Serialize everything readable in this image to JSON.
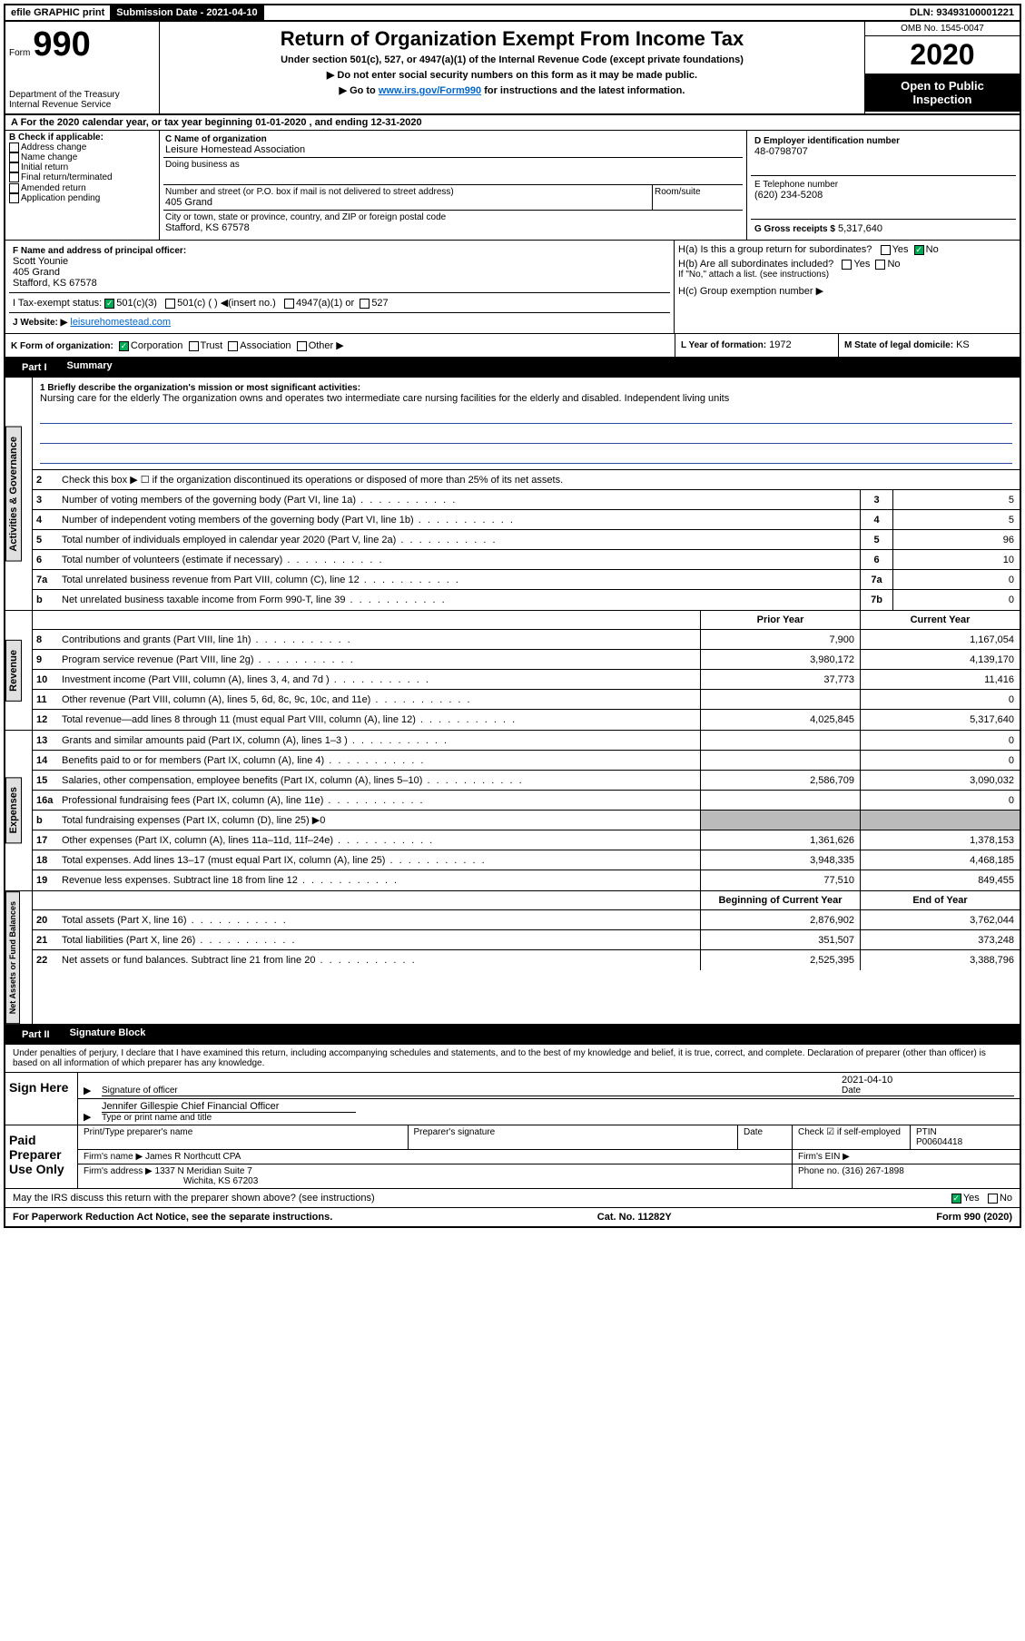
{
  "topbar": {
    "efile": "efile GRAPHIC print",
    "submission": "Submission Date - 2021-04-10",
    "dln": "DLN: 93493100001221"
  },
  "header": {
    "form_label": "Form",
    "form_num": "990",
    "dept": "Department of the Treasury",
    "irs": "Internal Revenue Service",
    "title": "Return of Organization Exempt From Income Tax",
    "subtitle1": "Under section 501(c), 527, or 4947(a)(1) of the Internal Revenue Code (except private foundations)",
    "subtitle2": "▶ Do not enter social security numbers on this form as it may be made public.",
    "subtitle3_pre": "▶ Go to ",
    "subtitle3_link": "www.irs.gov/Form990",
    "subtitle3_post": " for instructions and the latest information.",
    "omb": "OMB No. 1545-0047",
    "year": "2020",
    "open_public": "Open to Public Inspection"
  },
  "periodA": "A For the 2020 calendar year, or tax year beginning 01-01-2020    , and ending 12-31-2020",
  "boxB": {
    "title": "B Check if applicable:",
    "opts": [
      "Address change",
      "Name change",
      "Initial return",
      "Final return/terminated",
      "Amended return",
      "Application pending"
    ]
  },
  "boxC": {
    "label_name": "C Name of organization",
    "org_name": "Leisure Homestead Association",
    "dba_label": "Doing business as",
    "addr_label": "Number and street (or P.O. box if mail is not delivered to street address)",
    "room_label": "Room/suite",
    "addr": "405 Grand",
    "city_label": "City or town, state or province, country, and ZIP or foreign postal code",
    "city": "Stafford, KS  67578"
  },
  "boxD": {
    "label": "D Employer identification number",
    "val": "48-0798707"
  },
  "boxE": {
    "label": "E Telephone number",
    "val": "(620) 234-5208"
  },
  "boxG": {
    "label": "G Gross receipts $",
    "val": "5,317,640"
  },
  "boxF": {
    "label": "F  Name and address of principal officer:",
    "name": "Scott Younie",
    "addr1": "405 Grand",
    "addr2": "Stafford, KS  67578"
  },
  "boxH": {
    "a": "H(a)  Is this a group return for subordinates?",
    "b": "H(b)  Are all subordinates included?",
    "b_note": "If \"No,\" attach a list. (see instructions)",
    "c": "H(c)  Group exemption number ▶"
  },
  "boxI": {
    "label": "I   Tax-exempt status:",
    "opts": [
      "501(c)(3)",
      "501(c) (  ) ◀(insert no.)",
      "4947(a)(1) or",
      "527"
    ]
  },
  "boxJ": {
    "label": "J   Website: ▶",
    "val": "leisurehomestead.com"
  },
  "boxK": {
    "label": "K Form of organization:",
    "opts": [
      "Corporation",
      "Trust",
      "Association",
      "Other ▶"
    ]
  },
  "boxL": {
    "label": "L Year of formation:",
    "val": "1972"
  },
  "boxM": {
    "label": "M State of legal domicile:",
    "val": "KS"
  },
  "part1": {
    "header": "Part I",
    "title": "Summary",
    "line1_label": "1  Briefly describe the organization's mission or most significant activities:",
    "mission": "Nursing care for the elderly The organization owns and operates two intermediate care nursing facilities for the elderly and disabled. Independent living units",
    "line2": "Check this box ▶ ☐ if the organization discontinued its operations or disposed of more than 25% of its net assets.",
    "tabs": {
      "ag": "Activities & Governance",
      "rev": "Revenue",
      "exp": "Expenses",
      "na": "Net Assets or Fund Balances"
    },
    "col_prior": "Prior Year",
    "col_curr": "Current Year",
    "lines_gov": [
      {
        "n": "3",
        "t": "Number of voting members of the governing body (Part VI, line 1a)",
        "box": "3",
        "v": "5"
      },
      {
        "n": "4",
        "t": "Number of independent voting members of the governing body (Part VI, line 1b)",
        "box": "4",
        "v": "5"
      },
      {
        "n": "5",
        "t": "Total number of individuals employed in calendar year 2020 (Part V, line 2a)",
        "box": "5",
        "v": "96"
      },
      {
        "n": "6",
        "t": "Total number of volunteers (estimate if necessary)",
        "box": "6",
        "v": "10"
      },
      {
        "n": "7a",
        "t": "Total unrelated business revenue from Part VIII, column (C), line 12",
        "box": "7a",
        "v": "0"
      },
      {
        "n": "b",
        "t": "Net unrelated business taxable income from Form 990-T, line 39",
        "box": "7b",
        "v": "0"
      }
    ],
    "lines_rev": [
      {
        "n": "8",
        "t": "Contributions and grants (Part VIII, line 1h)",
        "p": "7,900",
        "c": "1,167,054"
      },
      {
        "n": "9",
        "t": "Program service revenue (Part VIII, line 2g)",
        "p": "3,980,172",
        "c": "4,139,170"
      },
      {
        "n": "10",
        "t": "Investment income (Part VIII, column (A), lines 3, 4, and 7d )",
        "p": "37,773",
        "c": "11,416"
      },
      {
        "n": "11",
        "t": "Other revenue (Part VIII, column (A), lines 5, 6d, 8c, 9c, 10c, and 11e)",
        "p": "",
        "c": "0"
      },
      {
        "n": "12",
        "t": "Total revenue—add lines 8 through 11 (must equal Part VIII, column (A), line 12)",
        "p": "4,025,845",
        "c": "5,317,640"
      }
    ],
    "lines_exp": [
      {
        "n": "13",
        "t": "Grants and similar amounts paid (Part IX, column (A), lines 1–3 )",
        "p": "",
        "c": "0"
      },
      {
        "n": "14",
        "t": "Benefits paid to or for members (Part IX, column (A), line 4)",
        "p": "",
        "c": "0"
      },
      {
        "n": "15",
        "t": "Salaries, other compensation, employee benefits (Part IX, column (A), lines 5–10)",
        "p": "2,586,709",
        "c": "3,090,032"
      },
      {
        "n": "16a",
        "t": "Professional fundraising fees (Part IX, column (A), line 11e)",
        "p": "",
        "c": "0"
      },
      {
        "n": "b",
        "t": "Total fundraising expenses (Part IX, column (D), line 25) ▶0",
        "shade": true
      },
      {
        "n": "17",
        "t": "Other expenses (Part IX, column (A), lines 11a–11d, 11f–24e)",
        "p": "1,361,626",
        "c": "1,378,153"
      },
      {
        "n": "18",
        "t": "Total expenses. Add lines 13–17 (must equal Part IX, column (A), line 25)",
        "p": "3,948,335",
        "c": "4,468,185"
      },
      {
        "n": "19",
        "t": "Revenue less expenses. Subtract line 18 from line 12",
        "p": "77,510",
        "c": "849,455"
      }
    ],
    "col_beg": "Beginning of Current Year",
    "col_end": "End of Year",
    "lines_na": [
      {
        "n": "20",
        "t": "Total assets (Part X, line 16)",
        "p": "2,876,902",
        "c": "3,762,044"
      },
      {
        "n": "21",
        "t": "Total liabilities (Part X, line 26)",
        "p": "351,507",
        "c": "373,248"
      },
      {
        "n": "22",
        "t": "Net assets or fund balances. Subtract line 21 from line 20",
        "p": "2,525,395",
        "c": "3,388,796"
      }
    ]
  },
  "part2": {
    "header": "Part II",
    "title": "Signature Block",
    "decl": "Under penalties of perjury, I declare that I have examined this return, including accompanying schedules and statements, and to the best of my knowledge and belief, it is true, correct, and complete. Declaration of preparer (other than officer) is based on all information of which preparer has any knowledge.",
    "sign_here": "Sign Here",
    "sig_officer": "Signature of officer",
    "date_label": "Date",
    "sig_date": "2021-04-10",
    "name_title": "Jennifer Gillespie  Chief Financial Officer",
    "type_label": "Type or print name and title",
    "paid": "Paid Preparer Use Only",
    "prep_name_label": "Print/Type preparer's name",
    "prep_sig_label": "Preparer's signature",
    "check_self": "Check ☑ if self-employed",
    "ptin_label": "PTIN",
    "ptin": "P00604418",
    "firm_name_label": "Firm's name    ▶",
    "firm_name": "James R Northcutt CPA",
    "firm_ein_label": "Firm's EIN ▶",
    "firm_addr_label": "Firm's address ▶",
    "firm_addr": "1337 N Meridian Suite 7",
    "firm_city": "Wichita, KS  67203",
    "phone_label": "Phone no.",
    "phone": "(316) 267-1898",
    "discuss": "May the IRS discuss this return with the preparer shown above? (see instructions)",
    "yes": "Yes",
    "no": "No"
  },
  "footer": {
    "pra": "For Paperwork Reduction Act Notice, see the separate instructions.",
    "cat": "Cat. No. 11282Y",
    "form": "Form 990 (2020)"
  }
}
